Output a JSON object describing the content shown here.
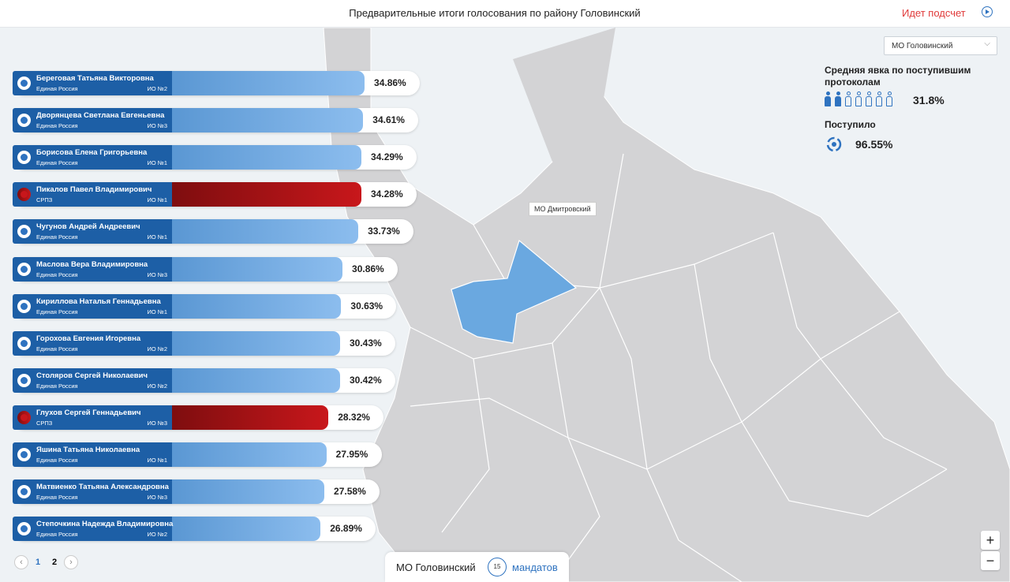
{
  "header": {
    "title": "Предварительные итоги голосования по району Головинский",
    "status": "Идет подсчет"
  },
  "district_select": "МО Головинский",
  "turnout": {
    "label": "Средняя явка по поступившим протоколам",
    "value": 31.8,
    "value_label": "31.8%"
  },
  "received": {
    "label": "Поступило",
    "value": 96.55,
    "value_label": "96.55%"
  },
  "map_label": "МО Дмитровский",
  "candidates": [
    {
      "name": "Береговая Татьяна Викторовна",
      "party": "Единая Россия",
      "district": "ИО №2",
      "value": 34.86,
      "value_label": "34.86%"
    },
    {
      "name": "Дворянцева Светлана Евгеньевна",
      "party": "Единая Россия",
      "district": "ИО №3",
      "value": 34.61,
      "value_label": "34.61%"
    },
    {
      "name": "Борисова Елена Григорьевна",
      "party": "Единая Россия",
      "district": "ИО №1",
      "value": 34.29,
      "value_label": "34.29%"
    },
    {
      "name": "Пикалов Павел Владимирович",
      "party": "СРПЗ",
      "district": "ИО №1",
      "value": 34.28,
      "value_label": "34.28%"
    },
    {
      "name": "Чугунов Андрей Андреевич",
      "party": "Единая Россия",
      "district": "ИО №1",
      "value": 33.73,
      "value_label": "33.73%"
    },
    {
      "name": "Маслова Вера Владимировна",
      "party": "Единая Россия",
      "district": "ИО №3",
      "value": 30.86,
      "value_label": "30.86%"
    },
    {
      "name": "Кириллова Наталья Геннадьевна",
      "party": "Единая Россия",
      "district": "ИО №1",
      "value": 30.63,
      "value_label": "30.63%"
    },
    {
      "name": "Горохова Евгения Игоревна",
      "party": "Единая Россия",
      "district": "ИО №2",
      "value": 30.43,
      "value_label": "30.43%"
    },
    {
      "name": "Столяров Сергей Николаевич",
      "party": "Единая Россия",
      "district": "ИО №2",
      "value": 30.42,
      "value_label": "30.42%"
    },
    {
      "name": "Глухов Сергей Геннадьевич",
      "party": "СРПЗ",
      "district": "ИО №3",
      "value": 28.32,
      "value_label": "28.32%"
    },
    {
      "name": "Яшина Татьяна Николаевна",
      "party": "Единая Россия",
      "district": "ИО №1",
      "value": 27.95,
      "value_label": "27.95%"
    },
    {
      "name": "Матвиенко Татьяна Александровна",
      "party": "Единая Россия",
      "district": "ИО №3",
      "value": 27.58,
      "value_label": "27.58%"
    },
    {
      "name": "Степочкина Надежда Владимировна",
      "party": "Единая Россия",
      "district": "ИО №2",
      "value": 26.89,
      "value_label": "26.89%"
    }
  ],
  "pages": [
    1,
    2
  ],
  "footer": {
    "district": "МО Головинский",
    "mandates": 15,
    "mandates_label": "мандатов"
  }
}
